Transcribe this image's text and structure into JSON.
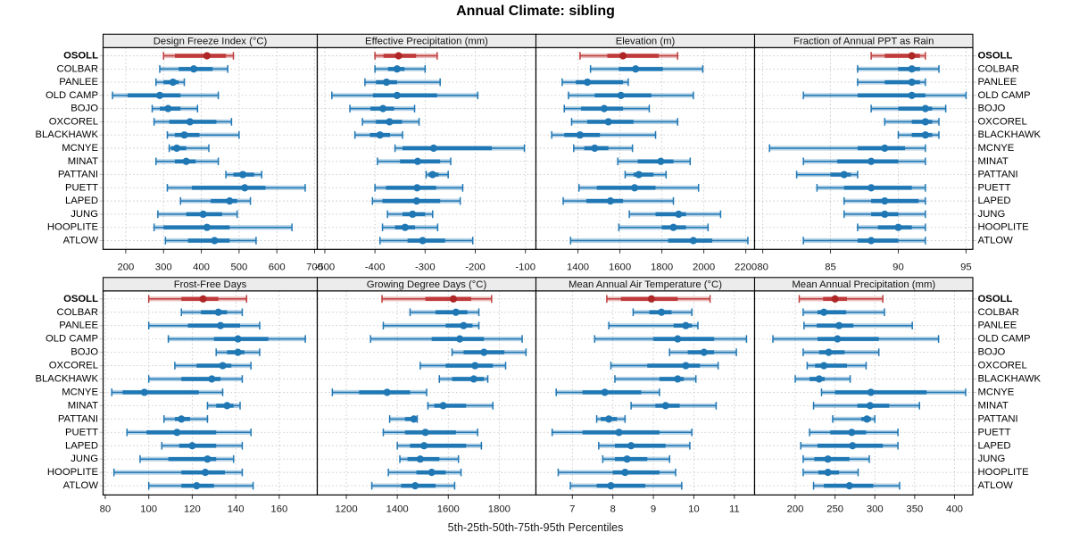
{
  "chart_data": {
    "type": "scatter",
    "subtype": "percentile-interval-dotplot",
    "title": "Annual Climate: sibling",
    "caption": "5th-25th-50th-75th-95th Percentiles",
    "legend_position": "none",
    "grid": {
      "rows": 2,
      "cols": 4,
      "gridlines": "dotted"
    },
    "colors": {
      "normal": "#1f77b4",
      "normal_dot": "#1f77b4",
      "highlight": "#bf3b3b",
      "highlight_dot": "#af2626",
      "strip_bg": "#ececec",
      "grid_line": "#c9c9c9",
      "frame": "#000000"
    },
    "stations": [
      "OSOLL",
      "COLBAR",
      "PANLEE",
      "OLD CAMP",
      "BOJO",
      "OXCOREL",
      "BLACKHAWK",
      "MCNYE",
      "MINAT",
      "PATTANI",
      "PUETT",
      "LAPED",
      "JUNG",
      "HOOPLITE",
      "ATLOW"
    ],
    "highlight_station": "OSOLL",
    "percentiles": [
      5,
      25,
      50,
      75,
      95
    ],
    "panels": [
      {
        "title": "Design Freeze Index (°C)",
        "row": 0,
        "col": 0,
        "xlim": [
          140,
          707
        ],
        "ticks": [
          200,
          300,
          400,
          500,
          600,
          700
        ],
        "tick_labels": [
          "200",
          "300",
          "400",
          "500",
          "600",
          "700"
        ],
        "values": [
          [
            300,
            330,
            415,
            465,
            485
          ],
          [
            290,
            340,
            380,
            430,
            470
          ],
          [
            280,
            300,
            325,
            340,
            355
          ],
          [
            165,
            205,
            290,
            345,
            445
          ],
          [
            270,
            290,
            312,
            345,
            390
          ],
          [
            275,
            315,
            370,
            440,
            480
          ],
          [
            310,
            330,
            355,
            395,
            500
          ],
          [
            315,
            320,
            335,
            360,
            420
          ],
          [
            280,
            330,
            360,
            385,
            445
          ],
          [
            465,
            485,
            510,
            540,
            560
          ],
          [
            310,
            375,
            515,
            570,
            675
          ],
          [
            345,
            425,
            475,
            495,
            530
          ],
          [
            285,
            360,
            405,
            455,
            495
          ],
          [
            275,
            300,
            415,
            475,
            640
          ],
          [
            305,
            365,
            435,
            475,
            545
          ]
        ]
      },
      {
        "title": "Effective Precipitation (mm)",
        "row": 0,
        "col": 1,
        "xlim": [
          -515,
          -79
        ],
        "ticks": [
          -500,
          -400,
          -300,
          -200,
          -100
        ],
        "tick_labels": [
          "-500",
          "-400",
          "-300",
          "-200",
          "-100"
        ],
        "values": [
          [
            -400,
            -383,
            -353,
            -318,
            -276
          ],
          [
            -400,
            -374,
            -356,
            -341,
            -300
          ],
          [
            -420,
            -398,
            -377,
            -356,
            -270
          ],
          [
            -486,
            -404,
            -356,
            -276,
            -195
          ],
          [
            -450,
            -409,
            -384,
            -362,
            -321
          ],
          [
            -425,
            -398,
            -371,
            -346,
            -312
          ],
          [
            -440,
            -410,
            -390,
            -370,
            -345
          ],
          [
            -360,
            -345,
            -283,
            -167,
            -102
          ],
          [
            -395,
            -350,
            -315,
            -270,
            -249
          ],
          [
            -298,
            -293,
            -285,
            -273,
            -254
          ],
          [
            -400,
            -378,
            -316,
            -278,
            -225
          ],
          [
            -405,
            -385,
            -317,
            -270,
            -230
          ],
          [
            -375,
            -345,
            -325,
            -300,
            -285
          ],
          [
            -385,
            -360,
            -340,
            -320,
            -275
          ],
          [
            -390,
            -335,
            -305,
            -260,
            -205
          ]
        ]
      },
      {
        "title": "Elevation (m)",
        "row": 0,
        "col": 2,
        "xlim": [
          1200,
          2242
        ],
        "ticks": [
          1400,
          1600,
          1800,
          2000,
          2200
        ],
        "tick_labels": [
          "1400",
          "1600",
          "1800",
          "2000",
          "2200"
        ],
        "values": [
          [
            1410,
            1540,
            1615,
            1785,
            1875
          ],
          [
            1460,
            1595,
            1675,
            1805,
            1995
          ],
          [
            1325,
            1390,
            1445,
            1615,
            1640
          ],
          [
            1355,
            1480,
            1605,
            1750,
            1950
          ],
          [
            1335,
            1415,
            1525,
            1615,
            1740
          ],
          [
            1370,
            1445,
            1545,
            1665,
            1875
          ],
          [
            1275,
            1335,
            1410,
            1505,
            1770
          ],
          [
            1380,
            1430,
            1480,
            1545,
            1660
          ],
          [
            1590,
            1685,
            1795,
            1855,
            1935
          ],
          [
            1625,
            1665,
            1690,
            1760,
            1820
          ],
          [
            1405,
            1490,
            1670,
            1770,
            1975
          ],
          [
            1330,
            1440,
            1555,
            1615,
            1855
          ],
          [
            1645,
            1770,
            1880,
            1915,
            2080
          ],
          [
            1595,
            1800,
            1855,
            1915,
            2020
          ],
          [
            1365,
            1830,
            1950,
            2040,
            2210
          ]
        ]
      },
      {
        "title": "Fraction of Annual PPT as Rain",
        "row": 0,
        "col": 3,
        "xlim": [
          79.4,
          95.5
        ],
        "ticks": [
          80,
          85,
          90,
          95
        ],
        "tick_labels": [
          "80",
          "85",
          "90",
          "95"
        ],
        "values": [
          [
            88,
            89,
            91,
            91.6,
            92
          ],
          [
            87,
            90,
            91,
            91.6,
            93
          ],
          [
            87,
            89,
            91,
            91.6,
            92
          ],
          [
            83,
            87,
            91,
            92,
            95
          ],
          [
            88,
            90,
            92,
            92.5,
            93.5
          ],
          [
            89,
            91,
            92,
            92.5,
            93
          ],
          [
            90,
            91,
            92,
            92.5,
            93
          ],
          [
            80.5,
            87,
            89,
            90.5,
            92
          ],
          [
            83,
            85.5,
            88,
            90,
            92
          ],
          [
            82.5,
            85,
            86,
            86.5,
            87
          ],
          [
            84,
            86,
            88,
            91,
            92
          ],
          [
            86,
            88,
            89,
            91.5,
            92
          ],
          [
            86,
            88,
            89,
            90,
            92
          ],
          [
            87,
            88.5,
            90,
            91,
            92
          ],
          [
            83,
            87,
            88,
            90,
            92
          ]
        ]
      },
      {
        "title": "Frost-Free Days",
        "row": 1,
        "col": 0,
        "xlim": [
          79,
          177.5
        ],
        "ticks": [
          80,
          100,
          120,
          140,
          160
        ],
        "tick_labels": [
          "80",
          "100",
          "120",
          "140",
          "160"
        ],
        "values": [
          [
            100,
            115,
            125,
            132,
            145
          ],
          [
            115,
            124,
            132,
            136,
            143
          ],
          [
            100,
            118,
            133,
            142,
            151
          ],
          [
            109,
            130,
            141,
            155,
            172
          ],
          [
            131,
            136,
            141,
            144,
            151
          ],
          [
            112,
            122,
            134,
            138,
            147
          ],
          [
            100,
            115,
            129,
            133,
            143
          ],
          [
            83,
            88,
            98,
            123,
            134
          ],
          [
            127,
            131,
            136,
            139,
            142
          ],
          [
            107,
            112,
            115,
            119,
            127
          ],
          [
            90,
            99,
            113,
            131,
            147
          ],
          [
            106,
            114,
            120,
            131,
            143
          ],
          [
            96,
            109,
            127,
            131,
            139
          ],
          [
            84,
            115,
            126,
            135,
            143
          ],
          [
            100,
            115,
            122,
            130,
            148
          ]
        ]
      },
      {
        "title": "Growing Degree Days (°C)",
        "row": 1,
        "col": 1,
        "xlim": [
          1086,
          1944
        ],
        "ticks": [
          1200,
          1400,
          1600,
          1800
        ],
        "tick_labels": [
          "1200",
          "1400",
          "1600",
          "1800"
        ],
        "values": [
          [
            1340,
            1510,
            1620,
            1690,
            1770
          ],
          [
            1450,
            1550,
            1630,
            1675,
            1720
          ],
          [
            1345,
            1590,
            1660,
            1695,
            1720
          ],
          [
            1295,
            1535,
            1645,
            1740,
            1890
          ],
          [
            1615,
            1660,
            1740,
            1820,
            1905
          ],
          [
            1490,
            1590,
            1705,
            1775,
            1825
          ],
          [
            1565,
            1615,
            1700,
            1740,
            1755
          ],
          [
            1145,
            1250,
            1360,
            1450,
            1515
          ],
          [
            1520,
            1545,
            1580,
            1670,
            1775
          ],
          [
            1370,
            1430,
            1465,
            1473,
            1478
          ],
          [
            1345,
            1430,
            1510,
            1630,
            1715
          ],
          [
            1400,
            1450,
            1505,
            1670,
            1730
          ],
          [
            1410,
            1440,
            1490,
            1565,
            1640
          ],
          [
            1365,
            1475,
            1535,
            1590,
            1650
          ],
          [
            1300,
            1415,
            1470,
            1550,
            1625
          ]
        ]
      },
      {
        "title": "Mean Annual Air Temperature (°C)",
        "row": 1,
        "col": 2,
        "xlim": [
          6.1,
          11.5
        ],
        "ticks": [
          7,
          8,
          9,
          10,
          11
        ],
        "tick_labels": [
          "7",
          "8",
          "9",
          "10",
          "11"
        ],
        "values": [
          [
            7.85,
            8.2,
            8.95,
            9.6,
            10.4
          ],
          [
            8.5,
            8.9,
            9.2,
            9.45,
            9.95
          ],
          [
            7.9,
            9.5,
            9.8,
            9.95,
            10.1
          ],
          [
            7.55,
            9.0,
            9.6,
            10.5,
            11.3
          ],
          [
            9.4,
            9.85,
            10.25,
            10.5,
            11.05
          ],
          [
            7.95,
            8.85,
            9.8,
            10.15,
            10.6
          ],
          [
            8.05,
            9.15,
            9.6,
            9.75,
            10.05
          ],
          [
            6.6,
            7.25,
            7.8,
            8.7,
            9.15
          ],
          [
            8.45,
            9.05,
            9.3,
            9.65,
            10.55
          ],
          [
            7.6,
            7.7,
            7.9,
            8.1,
            8.3
          ],
          [
            6.5,
            7.25,
            8.15,
            9.15,
            9.95
          ],
          [
            7.65,
            8.05,
            8.45,
            9.3,
            9.9
          ],
          [
            7.75,
            8.05,
            8.35,
            8.85,
            9.4
          ],
          [
            6.65,
            8.0,
            8.3,
            9.15,
            9.55
          ],
          [
            6.95,
            7.6,
            7.95,
            8.8,
            9.7
          ]
        ]
      },
      {
        "title": "Mean Annual Precipitation (mm)",
        "row": 1,
        "col": 3,
        "xlim": [
          149,
          423
        ],
        "ticks": [
          200,
          250,
          300,
          350,
          400
        ],
        "tick_labels": [
          "200",
          "250",
          "300",
          "350",
          "400"
        ],
        "values": [
          [
            205,
            235,
            250,
            265,
            310
          ],
          [
            210,
            228,
            236,
            264,
            312
          ],
          [
            211,
            227,
            255,
            273,
            347
          ],
          [
            172,
            228,
            253,
            305,
            380
          ],
          [
            210,
            230,
            242,
            262,
            305
          ],
          [
            215,
            225,
            236,
            265,
            289
          ],
          [
            200,
            218,
            230,
            237,
            269
          ],
          [
            233,
            250,
            295,
            365,
            414
          ],
          [
            223,
            278,
            294,
            318,
            356
          ],
          [
            247,
            283,
            290,
            295,
            300
          ],
          [
            218,
            244,
            271,
            289,
            329
          ],
          [
            207,
            228,
            272,
            310,
            329
          ],
          [
            210,
            224,
            241,
            268,
            293
          ],
          [
            210,
            229,
            241,
            255,
            279
          ],
          [
            223,
            236,
            268,
            298,
            331
          ]
        ]
      }
    ]
  }
}
